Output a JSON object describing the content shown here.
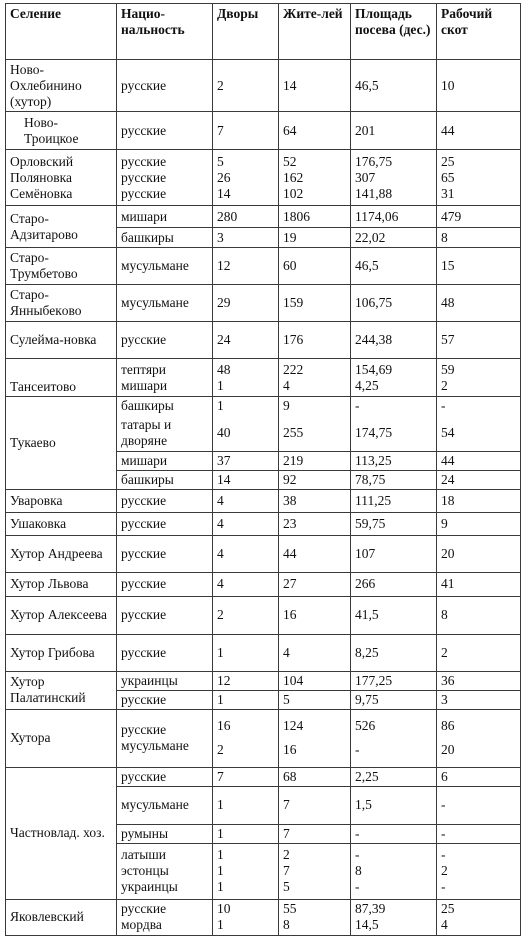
{
  "header": {
    "settlement": "Селение",
    "nationality": "Нацио-нальность",
    "households": "Дворы",
    "residents": "Жите-лей",
    "sown_area": "Площадь посева (дес.)",
    "livestock": "Рабочий скот"
  },
  "rows": [
    {
      "s": "Ново-Охлебинино (хутор)",
      "n": "русские",
      "h": "2",
      "r": "14",
      "a": "46,5",
      "l": "10"
    },
    {
      "s": "Ново-Троицкое",
      "n": "русские",
      "h": "7",
      "r": "64",
      "a": "201",
      "l": "44"
    },
    {
      "s": "Орловский",
      "n": "русские",
      "h": "5",
      "r": "52",
      "a": "176,75",
      "l": "25"
    },
    {
      "s": "Поляновка",
      "n": "русские",
      "h": "26",
      "r": "162",
      "a": "307",
      "l": "65"
    },
    {
      "s": "Семёновка",
      "n": "русские",
      "h": "14",
      "r": "102",
      "a": "141,88",
      "l": "31"
    },
    {
      "s": "Старо-Адзитарово",
      "n": "мишари",
      "h": "280",
      "r": "1806",
      "a": "1174,06",
      "l": "479"
    },
    {
      "s": "",
      "n": "башкиры",
      "h": "3",
      "r": "19",
      "a": "22,02",
      "l": "8"
    },
    {
      "s": "Старо-Трумбетово",
      "n": "мусульмане",
      "h": "12",
      "r": "60",
      "a": "46,5",
      "l": "15"
    },
    {
      "s": "Старо-Янныбекoво",
      "n": "мусульмане",
      "h": "29",
      "r": "159",
      "a": "106,75",
      "l": "48"
    },
    {
      "s": "Сулейма-новка",
      "n": "русские",
      "h": "24",
      "r": "176",
      "a": "244,38",
      "l": "57"
    },
    {
      "s": "Тансеитово",
      "n": "тептяри",
      "h": "48",
      "r": "222",
      "a": "154,69",
      "l": "59"
    },
    {
      "s": "",
      "n": "мишари",
      "h": "1",
      "r": "4",
      "a": "4,25",
      "l": "2"
    },
    {
      "s": "Тукаево",
      "n": "башкиры",
      "h": "1",
      "r": "9",
      "a": "-",
      "l": "-"
    },
    {
      "s": "",
      "n": "татары и дворяне",
      "h": "40",
      "r": "255",
      "a": "174,75",
      "l": "54"
    },
    {
      "s": "",
      "n": "мишари",
      "h": "37",
      "r": "219",
      "a": "113,25",
      "l": "44"
    },
    {
      "s": "",
      "n": "башкиры",
      "h": "14",
      "r": "92",
      "a": "78,75",
      "l": "24"
    },
    {
      "s": "Уваровка",
      "n": "русские",
      "h": "4",
      "r": "38",
      "a": "111,25",
      "l": "18"
    },
    {
      "s": "Ушаковка",
      "n": "русские",
      "h": "4",
      "r": "23",
      "a": "59,75",
      "l": "9"
    },
    {
      "s": "Хутор Андреева",
      "n": "русские",
      "h": "4",
      "r": "44",
      "a": "107",
      "l": "20"
    },
    {
      "s": "Хутор Львова",
      "n": "русские",
      "h": "4",
      "r": "27",
      "a": "266",
      "l": "41"
    },
    {
      "s": "Хутор Алексеева",
      "n": "русские",
      "h": "2",
      "r": "16",
      "a": "41,5",
      "l": "8"
    },
    {
      "s": "Хутор Грибова",
      "n": "русские",
      "h": "1",
      "r": "4",
      "a": "8,25",
      "l": "2"
    },
    {
      "s": "Хутор Палатинский",
      "n": "украинцы",
      "h": "12",
      "r": "104",
      "a": "177,25",
      "l": "36"
    },
    {
      "s": "",
      "n": "русские",
      "h": "1",
      "r": "5",
      "a": "9,75",
      "l": "3"
    },
    {
      "s": "Хутора",
      "n": "русские",
      "h": "16",
      "r": "124",
      "a": "526",
      "l": "86"
    },
    {
      "s": "",
      "n": "мусульмане",
      "h": "2",
      "r": "16",
      "a": "-",
      "l": "20"
    },
    {
      "s": "Частновлад. хоз.",
      "n": "русские",
      "h": "7",
      "r": "68",
      "a": "2,25",
      "l": "6"
    },
    {
      "s": "",
      "n": "мусульмане",
      "h": "1",
      "r": "7",
      "a": "1,5",
      "l": "-"
    },
    {
      "s": "",
      "n": "румыны",
      "h": "1",
      "r": "7",
      "a": "-",
      "l": "-"
    },
    {
      "s": "",
      "n": "латыши",
      "h": "1",
      "r": "2",
      "a": "-",
      "l": "-"
    },
    {
      "s": "",
      "n": "эстонцы",
      "h": "1",
      "r": "7",
      "a": "8",
      "l": "2"
    },
    {
      "s": "",
      "n": "украинцы",
      "h": "1",
      "r": "5",
      "a": "-",
      "l": "-"
    },
    {
      "s": "Яковлевский",
      "n": "русские",
      "h": "10",
      "r": "55",
      "a": "87,39",
      "l": "25"
    },
    {
      "s": "",
      "n": "мордва",
      "h": "1",
      "r": "8",
      "a": "14,5",
      "l": "4"
    }
  ]
}
